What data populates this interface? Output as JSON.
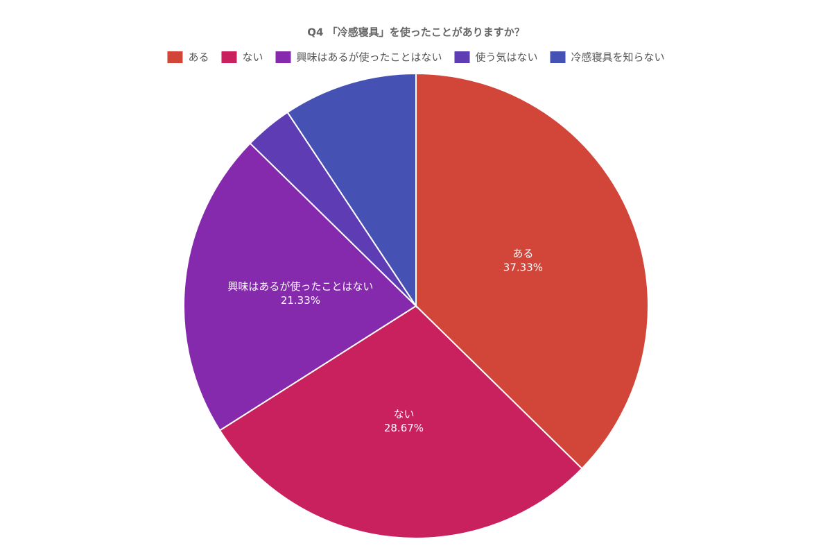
{
  "chart_data": {
    "type": "pie",
    "title": "Q4 「冷感寝具」を使ったことがありますか？",
    "categories": [
      "ある",
      "ない",
      "興味はあるが使ったことはない",
      "使う気はない",
      "冷感寝具を知らない"
    ],
    "values": [
      37.33,
      28.67,
      21.33,
      3.33,
      9.33
    ],
    "value_labels": [
      "37.33%",
      "28.67%",
      "21.33%",
      null,
      null
    ],
    "colors": [
      "#d2463a",
      "#c8215d",
      "#8529ad",
      "#5e3cb4",
      "#4652b3"
    ],
    "legend": "top"
  }
}
